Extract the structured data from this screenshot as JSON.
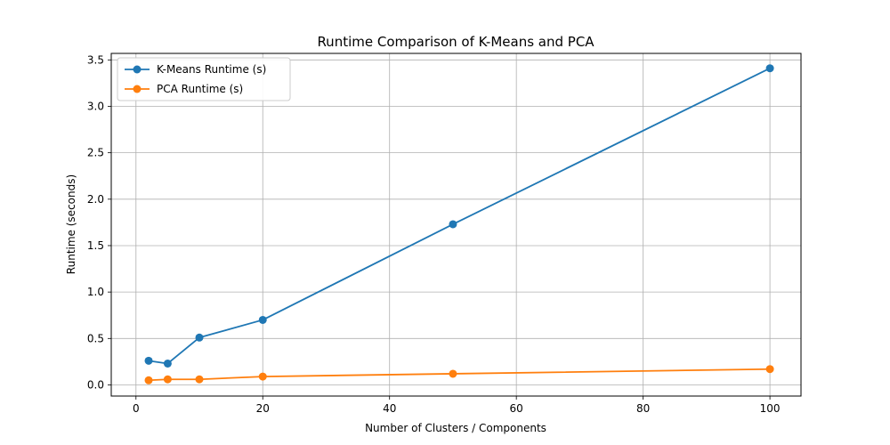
{
  "chart_data": {
    "type": "line",
    "title": "Runtime Comparison of K-Means and PCA",
    "xlabel": "Number of Clusters / Components",
    "ylabel": "Runtime (seconds)",
    "xlim": [
      -3.9,
      104.9
    ],
    "ylim": [
      -0.12,
      3.57
    ],
    "xticks": [
      0,
      20,
      40,
      60,
      80,
      100
    ],
    "yticks": [
      0.0,
      0.5,
      1.0,
      1.5,
      2.0,
      2.5,
      3.0,
      3.5
    ],
    "xtick_labels": [
      "0",
      "20",
      "40",
      "60",
      "80",
      "100"
    ],
    "ytick_labels": [
      "0.0",
      "0.5",
      "1.0",
      "1.5",
      "2.0",
      "2.5",
      "3.0",
      "3.5"
    ],
    "grid": true,
    "legend_position": "top-left",
    "x": [
      2,
      5,
      10,
      20,
      50,
      100
    ],
    "series": [
      {
        "name": "K-Means Runtime (s)",
        "color": "#1f77b4",
        "marker": "circle",
        "values": [
          0.26,
          0.23,
          0.51,
          0.7,
          1.73,
          3.41
        ]
      },
      {
        "name": "PCA Runtime (s)",
        "color": "#ff7f0e",
        "marker": "circle",
        "values": [
          0.05,
          0.06,
          0.06,
          0.09,
          0.12,
          0.17
        ]
      }
    ]
  }
}
